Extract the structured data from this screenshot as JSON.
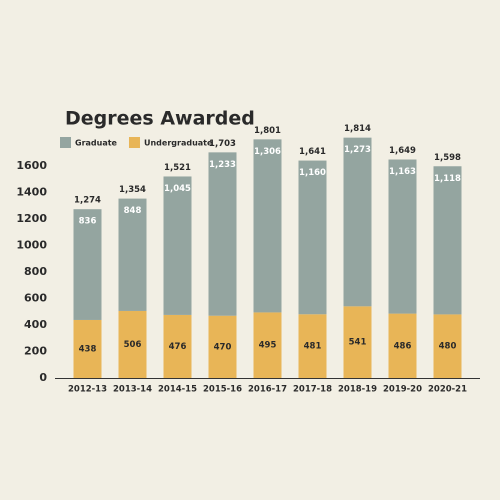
{
  "chart_data": {
    "type": "stacked-bar",
    "title": "Degrees Awarded",
    "categories": [
      "2012-13",
      "2013-14",
      "2014-15",
      "2015-16",
      "2016-17",
      "2017-18",
      "2018-19",
      "2019-20",
      "2020-21"
    ],
    "series": [
      {
        "name": "Undergraduate",
        "color": "#e8b557",
        "values": [
          438,
          506,
          476,
          470,
          495,
          481,
          541,
          486,
          480
        ]
      },
      {
        "name": "Graduate",
        "color": "#94a5a0",
        "values": [
          836,
          848,
          1045,
          1233,
          1306,
          1160,
          1273,
          1163,
          1118
        ],
        "value_labels": [
          "836",
          "848",
          "1,045",
          "1,233",
          "1,306",
          "1,160",
          "1,273",
          "1,163",
          "1,118"
        ]
      }
    ],
    "totals": [
      1274,
      1354,
      1521,
      1703,
      1801,
      1641,
      1814,
      1649,
      1598
    ],
    "total_labels": [
      "1,274",
      "1,354",
      "1,521",
      "1,703",
      "1,801",
      "1,641",
      "1,814",
      "1,649",
      "1,598"
    ],
    "legend_order": [
      1,
      0
    ],
    "ylim": [
      0,
      1800
    ],
    "yticks": [
      0,
      200,
      400,
      600,
      800,
      1000,
      1200,
      1400,
      1600
    ],
    "grid": false
  }
}
